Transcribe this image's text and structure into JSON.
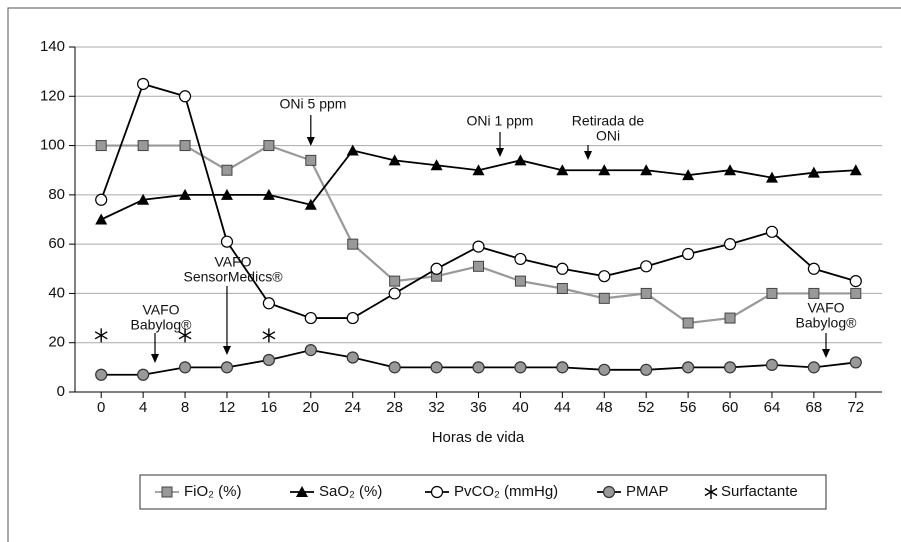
{
  "chart_data": {
    "type": "line",
    "xlabel": "Horas de vida",
    "x": [
      0,
      4,
      8,
      12,
      16,
      20,
      24,
      28,
      32,
      36,
      40,
      44,
      48,
      52,
      56,
      60,
      64,
      68,
      72
    ],
    "xlim": [
      -2.5,
      74.5
    ],
    "xticks": [
      0,
      4,
      8,
      12,
      16,
      20,
      24,
      28,
      32,
      36,
      40,
      44,
      48,
      52,
      56,
      60,
      64,
      68,
      72
    ],
    "ylim": [
      0,
      140
    ],
    "yticks": [
      0,
      20,
      40,
      60,
      80,
      100,
      120,
      140
    ],
    "grid": true,
    "series": [
      {
        "name": "FiO₂ (%)",
        "color": "#999999",
        "marker": "square",
        "values": [
          100,
          100,
          100,
          90,
          100,
          94,
          60,
          45,
          47,
          51,
          45,
          42,
          38,
          40,
          28,
          30,
          40,
          40,
          40
        ]
      },
      {
        "name": "SaO₂ (%)",
        "color": "#000000",
        "marker": "triangle",
        "values": [
          70,
          78,
          80,
          80,
          80,
          76,
          98,
          94,
          92,
          90,
          94,
          90,
          90,
          90,
          88,
          90,
          87,
          89,
          90
        ]
      },
      {
        "name": "PvCO₂ (mmHg)",
        "color": "#000000",
        "marker": "circle-white",
        "values": [
          78,
          125,
          120,
          61,
          36,
          30,
          30,
          40,
          50,
          59,
          54,
          50,
          47,
          51,
          56,
          60,
          65,
          50,
          45
        ]
      },
      {
        "name": "PMAP",
        "color": "#000000",
        "marker": "circle-gray",
        "values": [
          7,
          7,
          10,
          10,
          13,
          17,
          14,
          10,
          10,
          10,
          10,
          10,
          9,
          9,
          10,
          10,
          11,
          10,
          12
        ]
      },
      {
        "name": "Surfactante",
        "color": "#000000",
        "marker": "asterisk",
        "x": [
          0,
          8,
          16
        ],
        "values": [
          23,
          23,
          23
        ]
      }
    ],
    "annotations": [
      [
        "ONi 5 ppm"
      ],
      [
        "ONi 1 ppm"
      ],
      [
        "Retirada de",
        "ONi"
      ],
      [
        "VAFO",
        "SensorMedics®"
      ],
      [
        "VAFO",
        "Babylog®"
      ],
      [
        "VAFO",
        "Babylog®"
      ]
    ]
  }
}
